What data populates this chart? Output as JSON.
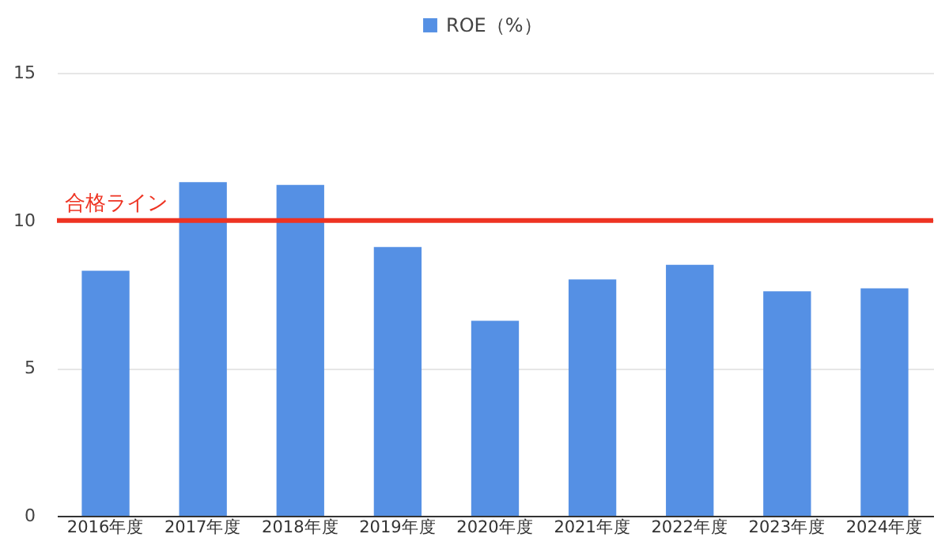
{
  "chart_data": {
    "type": "bar",
    "categories": [
      "2016年度",
      "2017年度",
      "2018年度",
      "2019年度",
      "2020年度",
      "2021年度",
      "2022年度",
      "2023年度",
      "2024年度"
    ],
    "series": [
      {
        "name": "ROE（%）",
        "color": "#5590e4",
        "values": [
          8.3,
          11.3,
          11.2,
          9.1,
          6.6,
          8.0,
          8.5,
          7.6,
          7.7
        ]
      }
    ],
    "ylim": [
      0,
      15
    ],
    "yticks": [
      0,
      5,
      10,
      15
    ],
    "grid": "y",
    "legend": "top",
    "ref_lines": [
      {
        "axis": "y",
        "value": 10,
        "label": "合格ライン",
        "color": "#ee3322"
      }
    ]
  }
}
